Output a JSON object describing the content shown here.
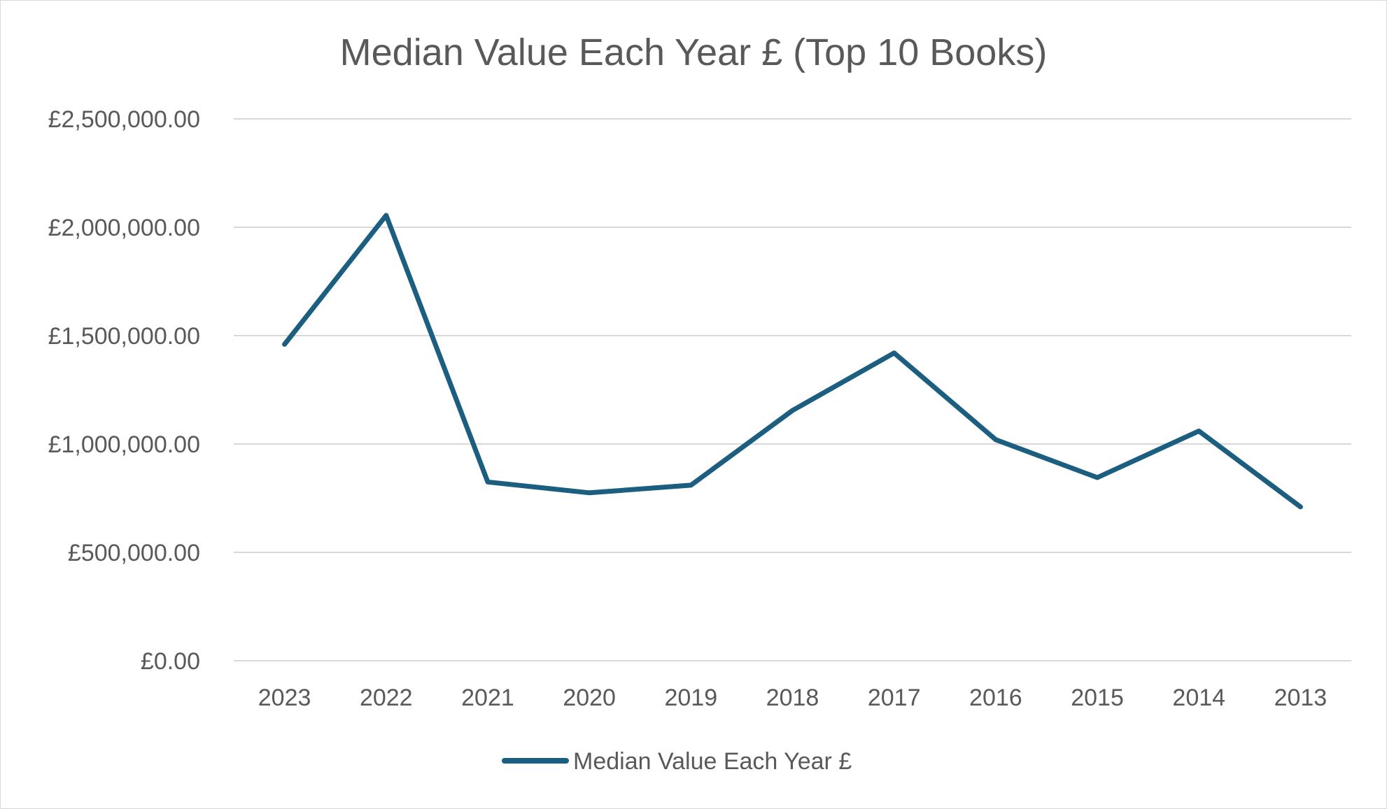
{
  "chart_data": {
    "type": "line",
    "title": "Median Value Each Year £ (Top 10 Books)",
    "xlabel": "",
    "ylabel": "",
    "categories": [
      "2023",
      "2022",
      "2021",
      "2020",
      "2019",
      "2018",
      "2017",
      "2016",
      "2015",
      "2014",
      "2013"
    ],
    "series": [
      {
        "name": "Median Value Each Year £",
        "color": "#1b5e80",
        "values": [
          1460000,
          2055000,
          825000,
          775000,
          810000,
          1155000,
          1420000,
          1020000,
          845000,
          1060000,
          710000
        ]
      }
    ],
    "ylim": [
      0,
      2500000
    ],
    "yticks": [
      0,
      500000,
      1000000,
      1500000,
      2000000,
      2500000
    ],
    "ytick_labels": [
      "£0.00",
      "£500,000.00",
      "£1,000,000.00",
      "£1,500,000.00",
      "£2,000,000.00",
      "£2,500,000.00"
    ],
    "grid": true,
    "legend_position": "bottom"
  }
}
